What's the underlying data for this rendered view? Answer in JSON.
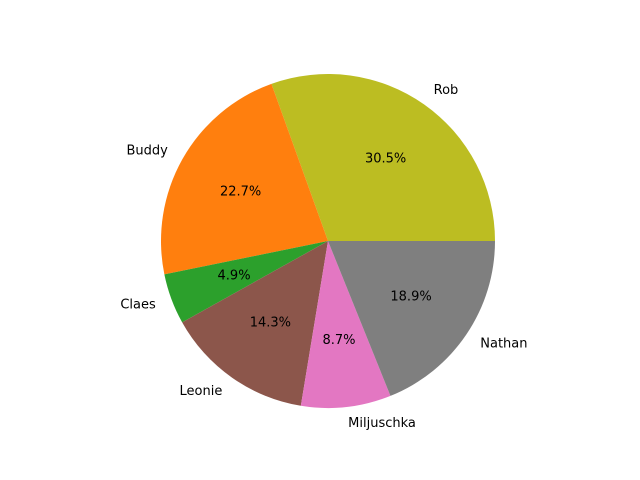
{
  "chart_data": {
    "type": "pie",
    "start_angle_deg": 0,
    "direction": "counterclockwise",
    "slices": [
      {
        "label": "Rob",
        "pct_label": "30.5%",
        "value": 30.5,
        "color": "#bcbd22"
      },
      {
        "label": "Buddy",
        "pct_label": "22.7%",
        "value": 22.7,
        "color": "#ff7f0e"
      },
      {
        "label": "Claes",
        "pct_label": "4.9%",
        "value": 4.9,
        "color": "#2ca02c"
      },
      {
        "label": "Leonie",
        "pct_label": "14.3%",
        "value": 14.3,
        "color": "#8c564b"
      },
      {
        "label": "Miljuschka",
        "pct_label": "8.7%",
        "value": 8.7,
        "color": "#e377c2"
      },
      {
        "label": "Nathan",
        "pct_label": "18.9%",
        "value": 18.9,
        "color": "#7f7f7f"
      }
    ]
  }
}
